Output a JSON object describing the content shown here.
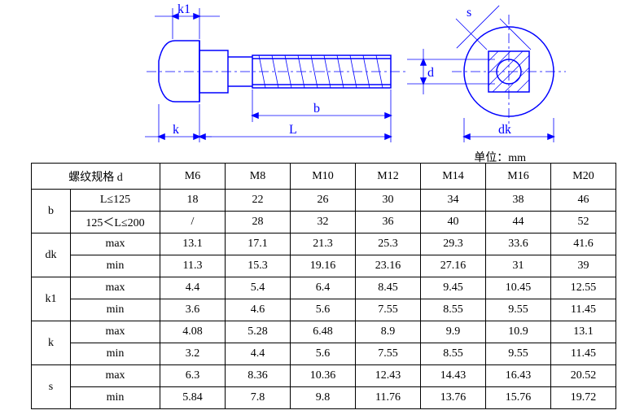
{
  "unit_label": "单位：mm",
  "diagram": {
    "labels": {
      "k1": "k1",
      "b": "b",
      "L": "L",
      "k": "k",
      "s": "s",
      "d": "d",
      "dk": "dk"
    },
    "stroke": "#0000ff",
    "stroke_width": 1.5
  },
  "table": {
    "header_label": "螺纹规格 d",
    "sizes": [
      "M6",
      "M8",
      "M10",
      "M12",
      "M14",
      "M16",
      "M20"
    ],
    "rows": [
      {
        "param": "b",
        "sub": "L≤125",
        "values": [
          "18",
          "22",
          "26",
          "30",
          "34",
          "38",
          "46"
        ]
      },
      {
        "param": "b",
        "sub": "125＜L≤200",
        "values": [
          "/",
          "28",
          "32",
          "36",
          "40",
          "44",
          "52"
        ]
      },
      {
        "param": "dk",
        "sub": "max",
        "values": [
          "13.1",
          "17.1",
          "21.3",
          "25.3",
          "29.3",
          "33.6",
          "41.6"
        ]
      },
      {
        "param": "dk",
        "sub": "min",
        "values": [
          "11.3",
          "15.3",
          "19.16",
          "23.16",
          "27.16",
          "31",
          "39"
        ]
      },
      {
        "param": "k1",
        "sub": "max",
        "values": [
          "4.4",
          "5.4",
          "6.4",
          "8.45",
          "9.45",
          "10.45",
          "12.55"
        ]
      },
      {
        "param": "k1",
        "sub": "min",
        "values": [
          "3.6",
          "4.6",
          "5.6",
          "7.55",
          "8.55",
          "9.55",
          "11.45"
        ]
      },
      {
        "param": "k",
        "sub": "max",
        "values": [
          "4.08",
          "5.28",
          "6.48",
          "8.9",
          "9.9",
          "10.9",
          "13.1"
        ]
      },
      {
        "param": "k",
        "sub": "min",
        "values": [
          "3.2",
          "4.4",
          "5.6",
          "7.55",
          "8.55",
          "9.55",
          "11.45"
        ]
      },
      {
        "param": "s",
        "sub": "max",
        "values": [
          "6.3",
          "8.36",
          "10.36",
          "12.43",
          "14.43",
          "16.43",
          "20.52"
        ]
      },
      {
        "param": "s",
        "sub": "min",
        "values": [
          "5.84",
          "7.8",
          "9.8",
          "11.76",
          "13.76",
          "15.76",
          "19.72"
        ]
      }
    ],
    "row_groups": [
      {
        "param": "b",
        "span": 2
      },
      {
        "param": "dk",
        "span": 2
      },
      {
        "param": "k1",
        "span": 2
      },
      {
        "param": "k",
        "span": 2
      },
      {
        "param": "s",
        "span": 2
      }
    ]
  }
}
